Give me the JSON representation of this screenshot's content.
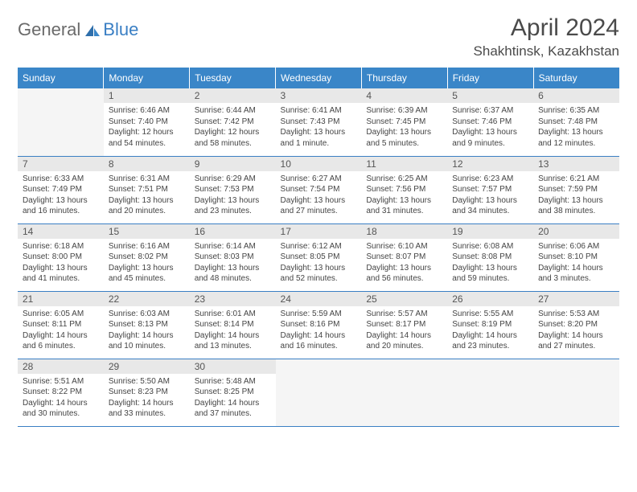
{
  "logo": {
    "general": "General",
    "blue": "Blue"
  },
  "header": {
    "month_title": "April 2024",
    "location": "Shakhtinsk, Kazakhstan"
  },
  "colors": {
    "header_bg": "#3a86c8",
    "header_text": "#ffffff",
    "rule": "#3a7fc4",
    "daynum_bg": "#e8e8e8",
    "logo_gray": "#6a6a6a",
    "logo_blue": "#3a7fc4",
    "empty_bg": "#f5f5f5"
  },
  "weekdays": [
    "Sunday",
    "Monday",
    "Tuesday",
    "Wednesday",
    "Thursday",
    "Friday",
    "Saturday"
  ],
  "weeks": [
    [
      null,
      {
        "n": "1",
        "sr": "Sunrise: 6:46 AM",
        "ss": "Sunset: 7:40 PM",
        "d1": "Daylight: 12 hours",
        "d2": "and 54 minutes."
      },
      {
        "n": "2",
        "sr": "Sunrise: 6:44 AM",
        "ss": "Sunset: 7:42 PM",
        "d1": "Daylight: 12 hours",
        "d2": "and 58 minutes."
      },
      {
        "n": "3",
        "sr": "Sunrise: 6:41 AM",
        "ss": "Sunset: 7:43 PM",
        "d1": "Daylight: 13 hours",
        "d2": "and 1 minute."
      },
      {
        "n": "4",
        "sr": "Sunrise: 6:39 AM",
        "ss": "Sunset: 7:45 PM",
        "d1": "Daylight: 13 hours",
        "d2": "and 5 minutes."
      },
      {
        "n": "5",
        "sr": "Sunrise: 6:37 AM",
        "ss": "Sunset: 7:46 PM",
        "d1": "Daylight: 13 hours",
        "d2": "and 9 minutes."
      },
      {
        "n": "6",
        "sr": "Sunrise: 6:35 AM",
        "ss": "Sunset: 7:48 PM",
        "d1": "Daylight: 13 hours",
        "d2": "and 12 minutes."
      }
    ],
    [
      {
        "n": "7",
        "sr": "Sunrise: 6:33 AM",
        "ss": "Sunset: 7:49 PM",
        "d1": "Daylight: 13 hours",
        "d2": "and 16 minutes."
      },
      {
        "n": "8",
        "sr": "Sunrise: 6:31 AM",
        "ss": "Sunset: 7:51 PM",
        "d1": "Daylight: 13 hours",
        "d2": "and 20 minutes."
      },
      {
        "n": "9",
        "sr": "Sunrise: 6:29 AM",
        "ss": "Sunset: 7:53 PM",
        "d1": "Daylight: 13 hours",
        "d2": "and 23 minutes."
      },
      {
        "n": "10",
        "sr": "Sunrise: 6:27 AM",
        "ss": "Sunset: 7:54 PM",
        "d1": "Daylight: 13 hours",
        "d2": "and 27 minutes."
      },
      {
        "n": "11",
        "sr": "Sunrise: 6:25 AM",
        "ss": "Sunset: 7:56 PM",
        "d1": "Daylight: 13 hours",
        "d2": "and 31 minutes."
      },
      {
        "n": "12",
        "sr": "Sunrise: 6:23 AM",
        "ss": "Sunset: 7:57 PM",
        "d1": "Daylight: 13 hours",
        "d2": "and 34 minutes."
      },
      {
        "n": "13",
        "sr": "Sunrise: 6:21 AM",
        "ss": "Sunset: 7:59 PM",
        "d1": "Daylight: 13 hours",
        "d2": "and 38 minutes."
      }
    ],
    [
      {
        "n": "14",
        "sr": "Sunrise: 6:18 AM",
        "ss": "Sunset: 8:00 PM",
        "d1": "Daylight: 13 hours",
        "d2": "and 41 minutes."
      },
      {
        "n": "15",
        "sr": "Sunrise: 6:16 AM",
        "ss": "Sunset: 8:02 PM",
        "d1": "Daylight: 13 hours",
        "d2": "and 45 minutes."
      },
      {
        "n": "16",
        "sr": "Sunrise: 6:14 AM",
        "ss": "Sunset: 8:03 PM",
        "d1": "Daylight: 13 hours",
        "d2": "and 48 minutes."
      },
      {
        "n": "17",
        "sr": "Sunrise: 6:12 AM",
        "ss": "Sunset: 8:05 PM",
        "d1": "Daylight: 13 hours",
        "d2": "and 52 minutes."
      },
      {
        "n": "18",
        "sr": "Sunrise: 6:10 AM",
        "ss": "Sunset: 8:07 PM",
        "d1": "Daylight: 13 hours",
        "d2": "and 56 minutes."
      },
      {
        "n": "19",
        "sr": "Sunrise: 6:08 AM",
        "ss": "Sunset: 8:08 PM",
        "d1": "Daylight: 13 hours",
        "d2": "and 59 minutes."
      },
      {
        "n": "20",
        "sr": "Sunrise: 6:06 AM",
        "ss": "Sunset: 8:10 PM",
        "d1": "Daylight: 14 hours",
        "d2": "and 3 minutes."
      }
    ],
    [
      {
        "n": "21",
        "sr": "Sunrise: 6:05 AM",
        "ss": "Sunset: 8:11 PM",
        "d1": "Daylight: 14 hours",
        "d2": "and 6 minutes."
      },
      {
        "n": "22",
        "sr": "Sunrise: 6:03 AM",
        "ss": "Sunset: 8:13 PM",
        "d1": "Daylight: 14 hours",
        "d2": "and 10 minutes."
      },
      {
        "n": "23",
        "sr": "Sunrise: 6:01 AM",
        "ss": "Sunset: 8:14 PM",
        "d1": "Daylight: 14 hours",
        "d2": "and 13 minutes."
      },
      {
        "n": "24",
        "sr": "Sunrise: 5:59 AM",
        "ss": "Sunset: 8:16 PM",
        "d1": "Daylight: 14 hours",
        "d2": "and 16 minutes."
      },
      {
        "n": "25",
        "sr": "Sunrise: 5:57 AM",
        "ss": "Sunset: 8:17 PM",
        "d1": "Daylight: 14 hours",
        "d2": "and 20 minutes."
      },
      {
        "n": "26",
        "sr": "Sunrise: 5:55 AM",
        "ss": "Sunset: 8:19 PM",
        "d1": "Daylight: 14 hours",
        "d2": "and 23 minutes."
      },
      {
        "n": "27",
        "sr": "Sunrise: 5:53 AM",
        "ss": "Sunset: 8:20 PM",
        "d1": "Daylight: 14 hours",
        "d2": "and 27 minutes."
      }
    ],
    [
      {
        "n": "28",
        "sr": "Sunrise: 5:51 AM",
        "ss": "Sunset: 8:22 PM",
        "d1": "Daylight: 14 hours",
        "d2": "and 30 minutes."
      },
      {
        "n": "29",
        "sr": "Sunrise: 5:50 AM",
        "ss": "Sunset: 8:23 PM",
        "d1": "Daylight: 14 hours",
        "d2": "and 33 minutes."
      },
      {
        "n": "30",
        "sr": "Sunrise: 5:48 AM",
        "ss": "Sunset: 8:25 PM",
        "d1": "Daylight: 14 hours",
        "d2": "and 37 minutes."
      },
      null,
      null,
      null,
      null
    ]
  ]
}
